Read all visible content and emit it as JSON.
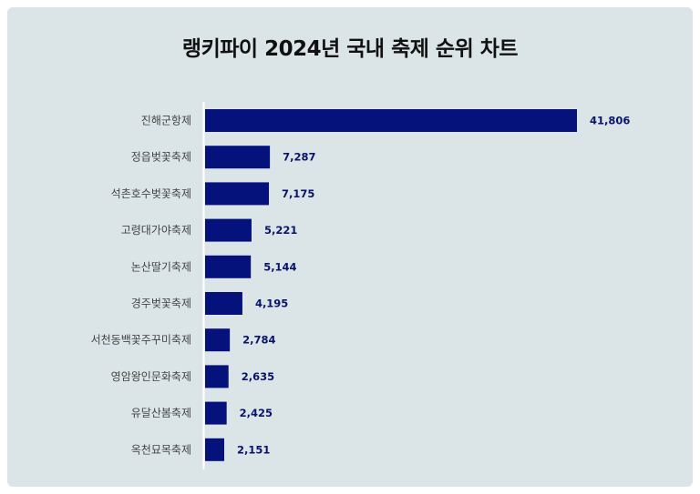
{
  "title": "랭키파이 2024년 국내 축제 순위 차트",
  "colors": {
    "bar": "#05127c",
    "value_label": "#0a1469",
    "background": "#dbe5e7"
  },
  "chart_data": {
    "type": "bar",
    "orientation": "horizontal",
    "title": "랭키파이 2024년 국내 축제 순위 차트",
    "categories": [
      "진해군항제",
      "정읍벚꽃축제",
      "석촌호수벚꽃축제",
      "고령대가야축제",
      "논산딸기축제",
      "경주벚꽃축제",
      "서천동백꽃주꾸미축제",
      "영암왕인문화축제",
      "유달산봄축제",
      "옥천묘목축제"
    ],
    "values": [
      41806,
      7287,
      7175,
      5221,
      5144,
      4195,
      2784,
      2635,
      2425,
      2151
    ],
    "value_labels": [
      "41,806",
      "7,287",
      "7,175",
      "5,221",
      "5,144",
      "4,195",
      "2,784",
      "2,635",
      "2,425",
      "2,151"
    ],
    "xlim": [
      0,
      41806
    ],
    "grid": false,
    "legend": "none"
  }
}
